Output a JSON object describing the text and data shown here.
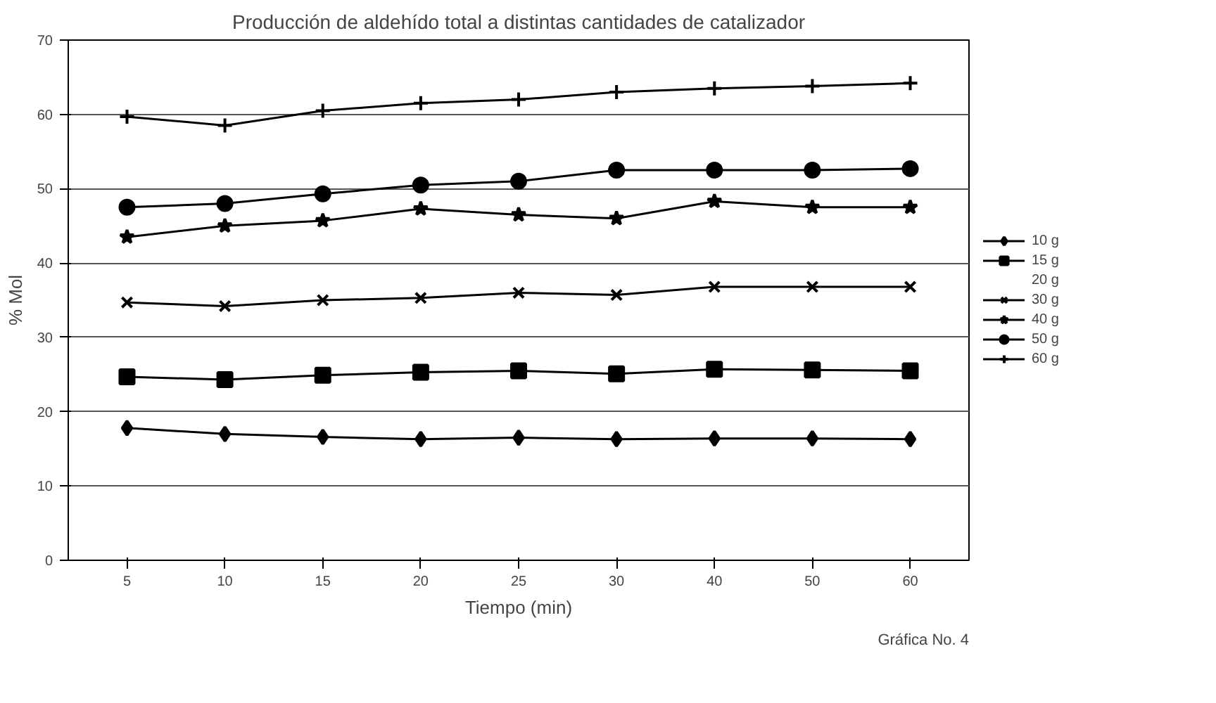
{
  "chart_data": {
    "type": "line",
    "title": "Producción de aldehído total a distintas cantidades de catalizador",
    "xlabel": "Tiempo (min)",
    "ylabel": "% Mol",
    "categories": [
      "5",
      "10",
      "15",
      "20",
      "25",
      "30",
      "40",
      "50",
      "60"
    ],
    "ylim": [
      0,
      70
    ],
    "yticks": [
      0,
      10,
      20,
      30,
      40,
      50,
      60,
      70
    ],
    "grid": "y",
    "legend": "right",
    "annotations": [
      "Gráfica No. 4"
    ],
    "series": [
      {
        "name": "10 g",
        "color": "#000000",
        "marker": "diamond",
        "values": [
          17.8,
          17.0,
          16.6,
          16.3,
          16.5,
          16.3,
          16.4,
          16.4,
          16.3
        ]
      },
      {
        "name": "15 g",
        "color": "#000000",
        "marker": "square",
        "values": [
          24.7,
          24.3,
          24.9,
          25.3,
          25.5,
          25.1,
          25.7,
          25.6,
          25.5
        ]
      },
      {
        "name": "20 g",
        "marker": "none",
        "values": [
          null,
          null,
          null,
          null,
          null,
          null,
          null,
          null,
          null
        ]
      },
      {
        "name": "30 g",
        "color": "#000000",
        "marker": "x",
        "values": [
          34.7,
          34.2,
          35.0,
          35.3,
          36.0,
          35.7,
          36.8,
          36.8,
          36.8
        ]
      },
      {
        "name": "40 g",
        "color": "#000000",
        "marker": "star",
        "values": [
          43.5,
          45.0,
          45.7,
          47.3,
          46.5,
          46.0,
          48.3,
          47.5,
          47.5
        ]
      },
      {
        "name": "50 g",
        "color": "#000000",
        "marker": "circle",
        "values": [
          47.5,
          48.0,
          49.3,
          50.5,
          51.0,
          52.5,
          52.5,
          52.5,
          52.7
        ]
      },
      {
        "name": "60 g",
        "color": "#000000",
        "marker": "cross",
        "values": [
          59.7,
          58.5,
          60.5,
          61.5,
          62.0,
          63.0,
          63.5,
          63.8,
          64.2
        ]
      }
    ]
  }
}
